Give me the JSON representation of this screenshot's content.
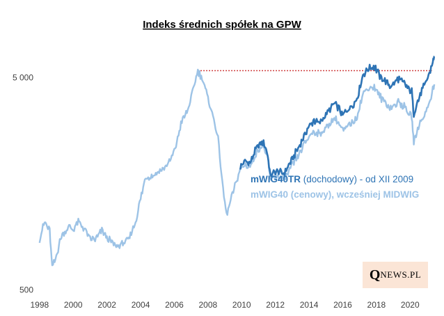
{
  "chart_data": {
    "type": "line",
    "title": "Indeks średnich spółek na GPW",
    "xlabel": "",
    "ylabel": "",
    "y_scale": "log",
    "ylim": [
      480,
      7500
    ],
    "xlim": [
      1997.8,
      2021.6
    ],
    "x_ticks": [
      "1998",
      "2000",
      "2002",
      "2004",
      "2006",
      "2008",
      "2010",
      "2012",
      "2014",
      "2016",
      "2018",
      "2020"
    ],
    "y_ticks": [
      {
        "value": 500,
        "label": "500"
      },
      {
        "value": 5000,
        "label": "5 000"
      }
    ],
    "series": [
      {
        "name": "mWIG40TR",
        "legend_bold": "mWIG40TR",
        "legend_rest": " (dochodowy)  - od XII 2009",
        "color": "#2e74b5",
        "points": [
          [
            2009.92,
            1900
          ],
          [
            2010.2,
            2020
          ],
          [
            2010.5,
            1980
          ],
          [
            2010.8,
            2250
          ],
          [
            2011.1,
            2450
          ],
          [
            2011.3,
            2500
          ],
          [
            2011.55,
            2150
          ],
          [
            2011.7,
            1730
          ],
          [
            2011.9,
            1770
          ],
          [
            2012.2,
            1820
          ],
          [
            2012.5,
            1760
          ],
          [
            2012.8,
            1930
          ],
          [
            2013.1,
            2150
          ],
          [
            2013.4,
            2350
          ],
          [
            2013.7,
            2650
          ],
          [
            2014.0,
            2950
          ],
          [
            2014.3,
            3150
          ],
          [
            2014.6,
            3050
          ],
          [
            2014.9,
            3280
          ],
          [
            2015.2,
            3520
          ],
          [
            2015.5,
            3780
          ],
          [
            2015.8,
            3550
          ],
          [
            2016.0,
            3300
          ],
          [
            2016.2,
            3480
          ],
          [
            2016.5,
            3650
          ],
          [
            2016.8,
            3880
          ],
          [
            2017.0,
            4450
          ],
          [
            2017.2,
            5150
          ],
          [
            2017.5,
            5500
          ],
          [
            2017.8,
            5650
          ],
          [
            2017.95,
            5550
          ],
          [
            2018.2,
            5100
          ],
          [
            2018.5,
            4850
          ],
          [
            2018.8,
            4550
          ],
          [
            2019.0,
            4650
          ],
          [
            2019.3,
            4950
          ],
          [
            2019.6,
            4750
          ],
          [
            2019.8,
            4550
          ],
          [
            2020.1,
            4300
          ],
          [
            2020.22,
            3350
          ],
          [
            2020.45,
            3850
          ],
          [
            2020.7,
            4350
          ],
          [
            2020.95,
            4750
          ],
          [
            2021.15,
            5250
          ],
          [
            2021.35,
            5950
          ],
          [
            2021.45,
            6300
          ]
        ]
      },
      {
        "name": "mWIG40",
        "legend_bold": "",
        "legend_rest": "mWIG40 (cenowy), wcześniej MIDWIG",
        "color": "#9dc3e6",
        "points": [
          [
            1998.0,
            870
          ],
          [
            1998.3,
            1050
          ],
          [
            1998.6,
            950
          ],
          [
            1998.75,
            640
          ],
          [
            1998.95,
            700
          ],
          [
            1999.3,
            900
          ],
          [
            1999.7,
            990
          ],
          [
            2000.0,
            960
          ],
          [
            2000.3,
            1060
          ],
          [
            2000.7,
            960
          ],
          [
            2001.0,
            870
          ],
          [
            2001.3,
            860
          ],
          [
            2001.7,
            950
          ],
          [
            2002.0,
            880
          ],
          [
            2002.5,
            810
          ],
          [
            2002.9,
            820
          ],
          [
            2003.3,
            870
          ],
          [
            2003.7,
            1050
          ],
          [
            2004.0,
            1350
          ],
          [
            2004.3,
            1700
          ],
          [
            2004.7,
            1720
          ],
          [
            2005.0,
            1780
          ],
          [
            2005.4,
            1880
          ],
          [
            2005.8,
            2050
          ],
          [
            2006.1,
            2400
          ],
          [
            2006.4,
            3050
          ],
          [
            2006.8,
            3500
          ],
          [
            2007.1,
            4300
          ],
          [
            2007.4,
            5400
          ],
          [
            2007.7,
            4900
          ],
          [
            2008.0,
            4000
          ],
          [
            2008.3,
            3300
          ],
          [
            2008.6,
            2600
          ],
          [
            2008.85,
            1600
          ],
          [
            2009.1,
            1130
          ],
          [
            2009.4,
            1350
          ],
          [
            2009.7,
            1650
          ],
          [
            2009.92,
            1850
          ],
          [
            2010.2,
            1950
          ],
          [
            2010.5,
            1900
          ],
          [
            2010.8,
            2150
          ],
          [
            2011.1,
            2350
          ],
          [
            2011.3,
            2380
          ],
          [
            2011.55,
            2050
          ],
          [
            2011.7,
            1650
          ],
          [
            2011.9,
            1680
          ],
          [
            2012.2,
            1720
          ],
          [
            2012.5,
            1650
          ],
          [
            2012.8,
            1800
          ],
          [
            2013.1,
            1990
          ],
          [
            2013.4,
            2150
          ],
          [
            2013.7,
            2400
          ],
          [
            2014.0,
            2650
          ],
          [
            2014.3,
            2800
          ],
          [
            2014.6,
            2700
          ],
          [
            2014.9,
            2850
          ],
          [
            2015.2,
            3020
          ],
          [
            2015.5,
            3230
          ],
          [
            2015.8,
            3030
          ],
          [
            2016.0,
            2800
          ],
          [
            2016.2,
            2900
          ],
          [
            2016.5,
            3050
          ],
          [
            2016.8,
            3200
          ],
          [
            2017.0,
            3650
          ],
          [
            2017.2,
            4200
          ],
          [
            2017.5,
            4480
          ],
          [
            2017.8,
            4520
          ],
          [
            2017.95,
            4450
          ],
          [
            2018.2,
            4080
          ],
          [
            2018.5,
            3850
          ],
          [
            2018.8,
            3600
          ],
          [
            2019.0,
            3650
          ],
          [
            2019.3,
            3850
          ],
          [
            2019.6,
            3700
          ],
          [
            2019.8,
            3500
          ],
          [
            2020.1,
            3250
          ],
          [
            2020.22,
            2500
          ],
          [
            2020.45,
            2870
          ],
          [
            2020.7,
            3200
          ],
          [
            2020.95,
            3480
          ],
          [
            2021.15,
            3850
          ],
          [
            2021.35,
            4400
          ],
          [
            2021.45,
            4650
          ]
        ]
      }
    ],
    "annotations": [
      {
        "type": "hline",
        "style": "dotted",
        "color": "#c00000",
        "y": 5400,
        "x_start": 2007.4,
        "x_end": 2021.3
      }
    ]
  },
  "watermark": {
    "q": "Q",
    "rest": "NEWS.PL"
  }
}
